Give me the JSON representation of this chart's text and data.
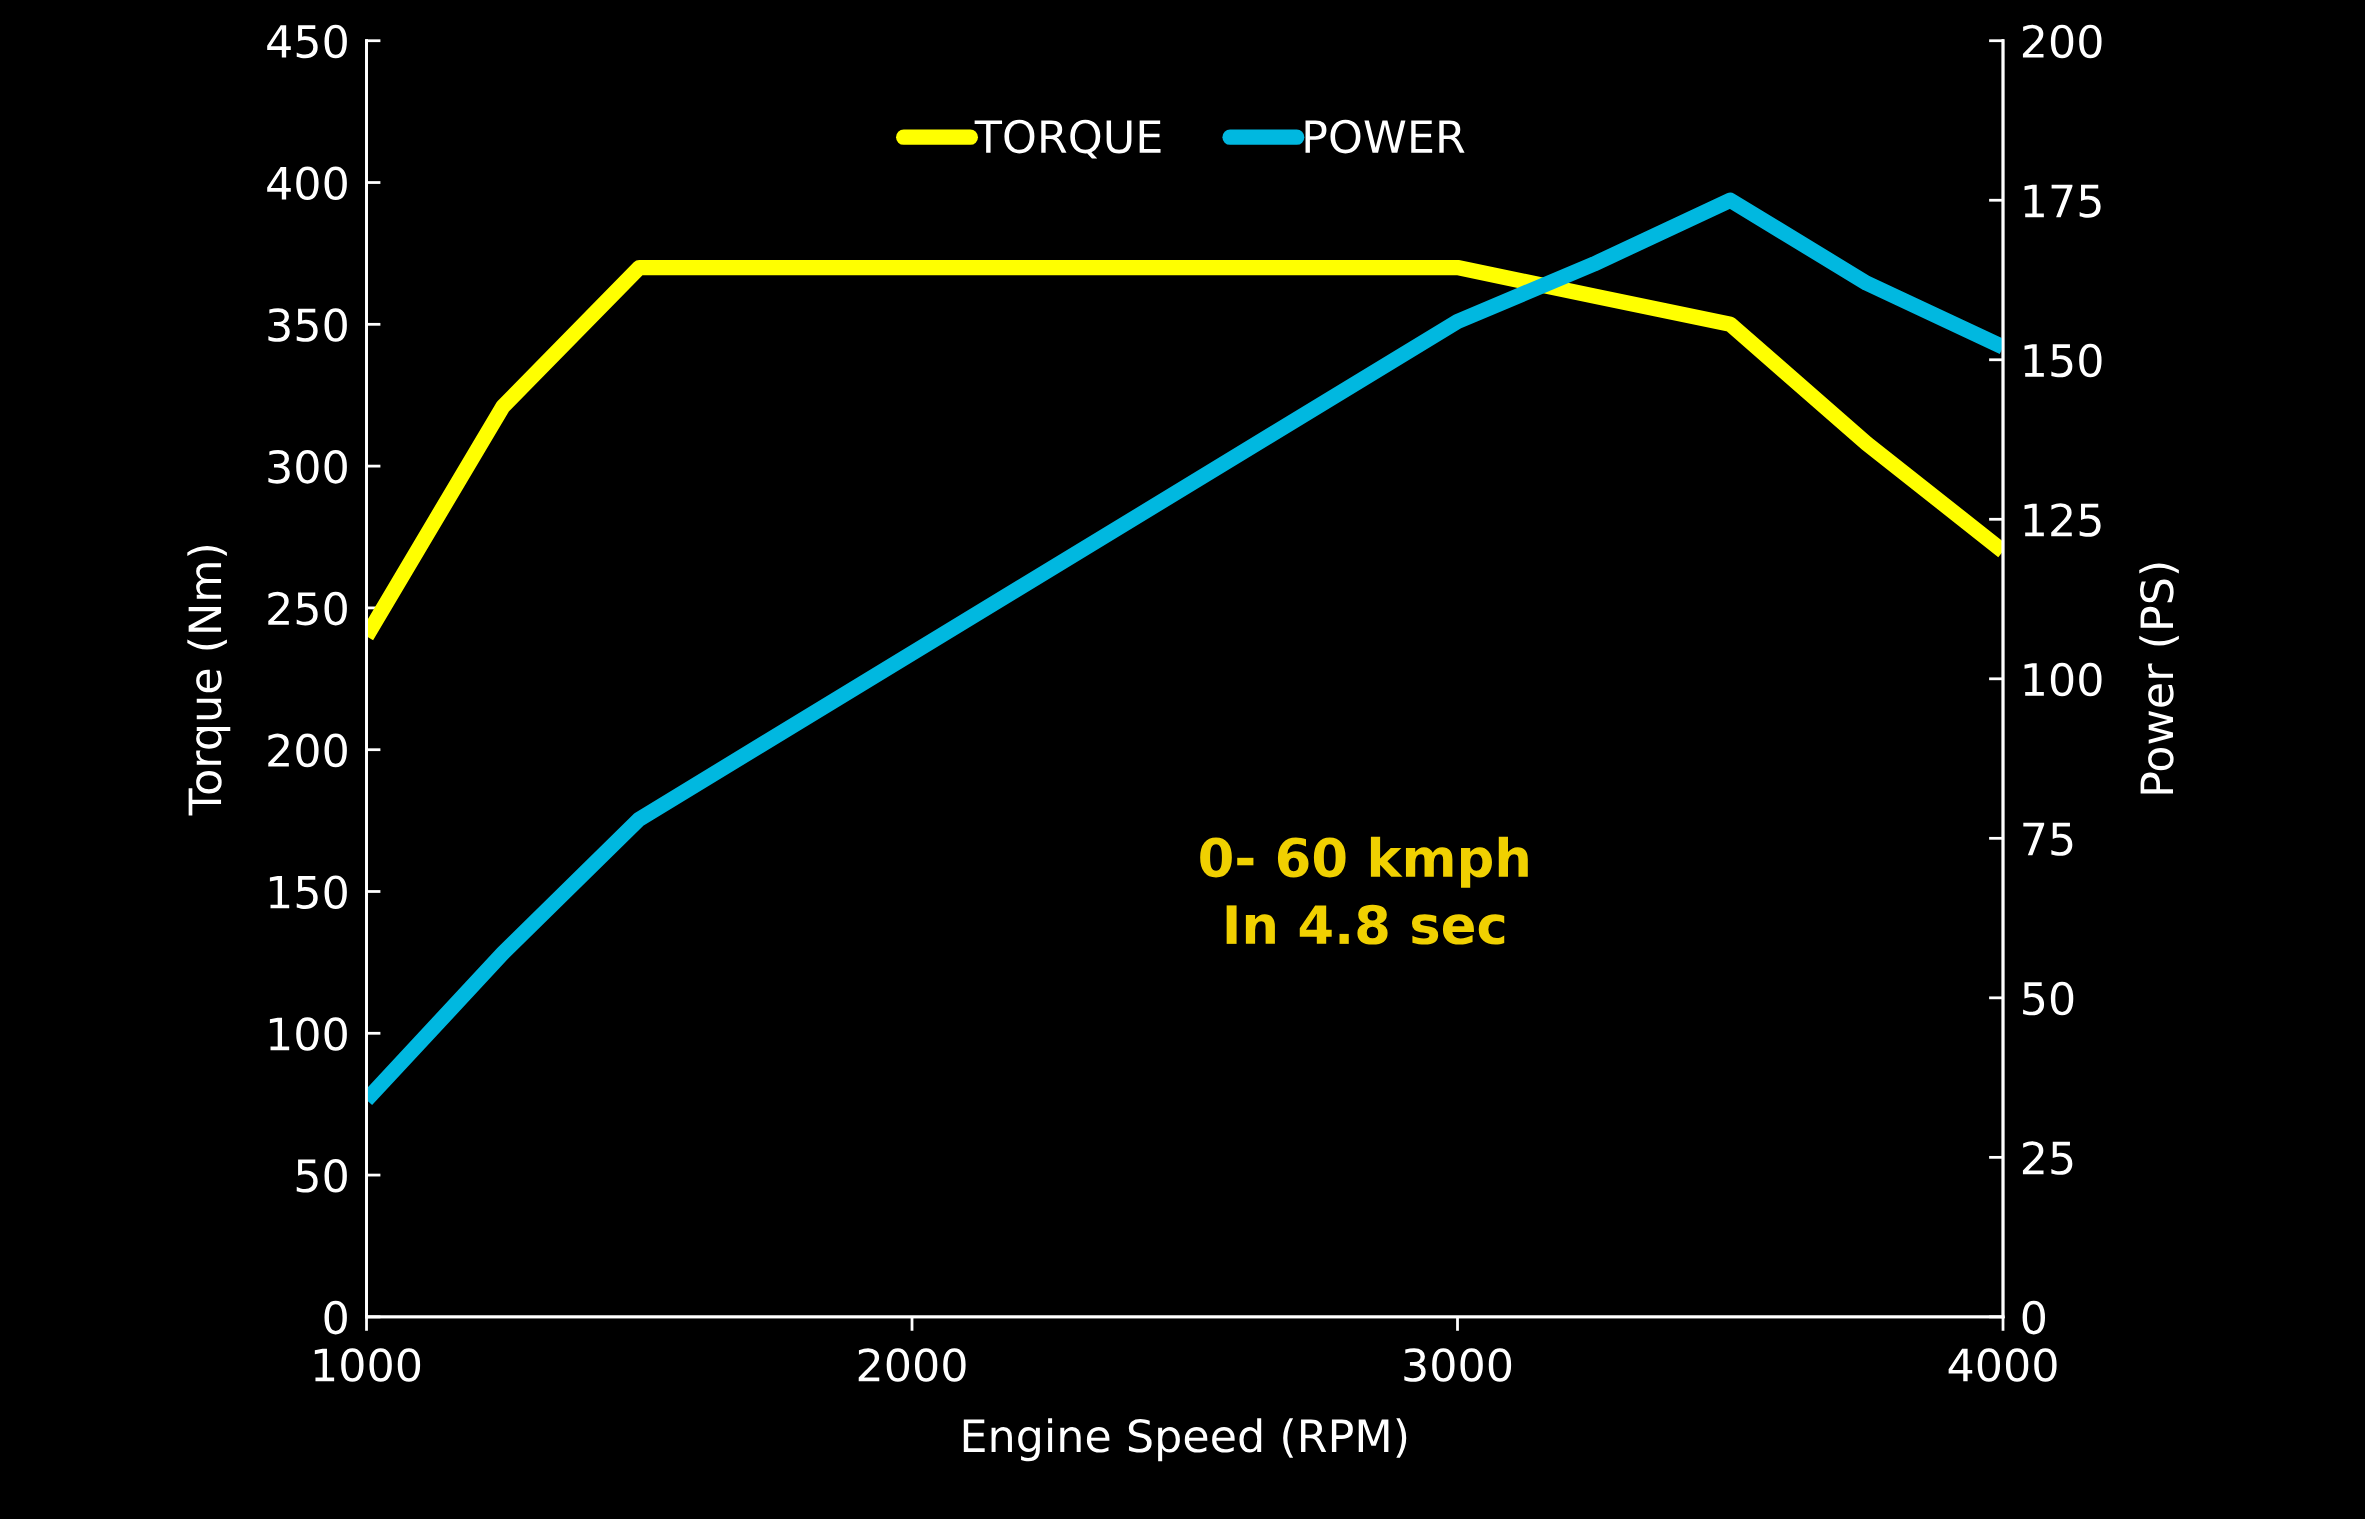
{
  "chart_data": {
    "type": "line",
    "xlabel": "Engine Speed (RPM)",
    "ylabel": "Torque (Nm)",
    "y2label": "Power (PS)",
    "x": [
      1000,
      1250,
      1500,
      3000,
      3250,
      3500,
      3750,
      4000
    ],
    "series": [
      {
        "name": "TORQUE",
        "color": "#ffff00",
        "values": [
          240,
          321,
          370,
          370,
          360,
          350,
          308,
          270
        ]
      },
      {
        "name": "POWER",
        "color": "#00b8e0",
        "axis": "y2",
        "values": [
          34,
          57,
          78,
          156,
          165,
          175,
          162,
          152
        ]
      }
    ],
    "xlim": [
      1000,
      4000
    ],
    "xticks": [
      1000,
      2000,
      3000,
      4000
    ],
    "ylim": [
      0,
      450
    ],
    "yticks": [
      0,
      50,
      100,
      150,
      200,
      250,
      300,
      350,
      400,
      450
    ],
    "y2lim": [
      0,
      200
    ],
    "y2ticks": [
      0,
      25,
      50,
      75,
      100,
      125,
      150,
      175,
      200
    ],
    "annotations": [
      "0- 60 kmph\nIn 4.8 sec"
    ],
    "legend": "top",
    "grid": false,
    "marker": "none",
    "line_style": "solid"
  }
}
